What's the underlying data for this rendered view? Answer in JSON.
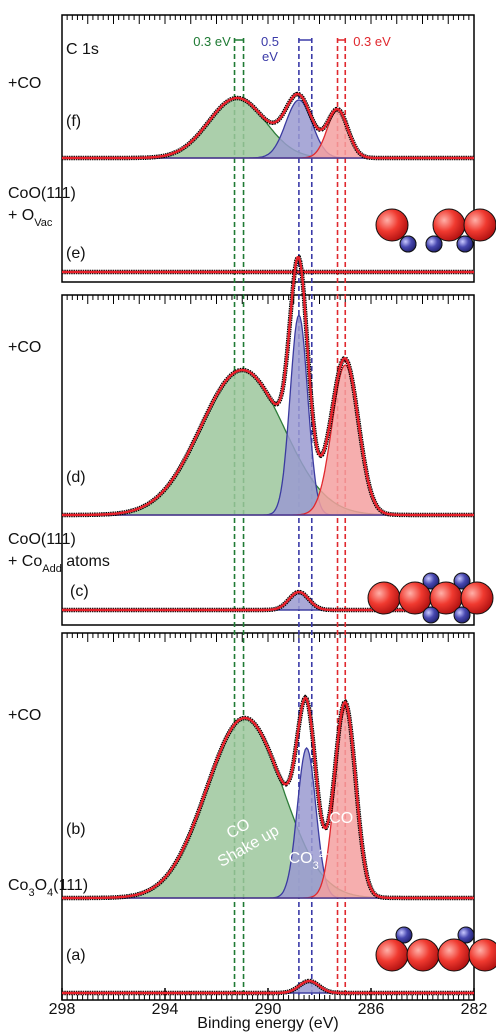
{
  "chart_data": {
    "type": "line",
    "title": "C 1s",
    "xlabel": "Binding energy (eV)",
    "xlim": [
      298,
      282
    ],
    "xticks": [
      298,
      294,
      290,
      286,
      282
    ],
    "reference_lines": [
      {
        "x": 291.3,
        "color": "#1f7a34"
      },
      {
        "x": 290.95,
        "color": "#1f7a34"
      },
      {
        "x": 288.8,
        "color": "#3a3aa8"
      },
      {
        "x": 288.3,
        "color": "#3a3aa8"
      },
      {
        "x": 287.3,
        "color": "#e0282e"
      },
      {
        "x": 287.0,
        "color": "#e0282e"
      }
    ],
    "annotations": [
      {
        "lines": [
          "0.3 eV"
        ],
        "color": "#1f7a34"
      },
      {
        "lines": [
          "0.5",
          "eV"
        ],
        "color": "#3a3aa8"
      },
      {
        "lines": [
          "0.3 eV"
        ],
        "color": "#e0282e"
      }
    ],
    "fit_color": "#e8202a",
    "panels": [
      {
        "note": "+CO",
        "label": "(f)",
        "components": [
          {
            "center": 291.2,
            "height": 60,
            "fwhm": 2.6,
            "color": "#2e7d3a",
            "fill": "#9cc79c"
          },
          {
            "center": 288.8,
            "height": 58,
            "fwhm": 1.2,
            "color": "#3b3ba0",
            "fill": "#9a9ad0"
          },
          {
            "center": 287.3,
            "height": 48,
            "fwhm": 0.95,
            "color": "#e0282e",
            "fill": "#f4a0a0"
          }
        ]
      },
      {
        "label": "(e)",
        "sample": [
          [
            {
              "t": "CoO(111)"
            }
          ],
          [
            {
              "t": "+ O"
            },
            {
              "t": "Vac",
              "sub": true
            }
          ]
        ],
        "components": []
      },
      {
        "note": "+CO",
        "label": "(d)",
        "components": [
          {
            "center": 291.0,
            "height": 145,
            "fwhm": 3.8,
            "color": "#2e7d3a",
            "fill": "#9cc79c"
          },
          {
            "center": 288.8,
            "height": 200,
            "fwhm": 0.8,
            "color": "#3b3ba0",
            "fill": "#9a9ad0"
          },
          {
            "center": 287.0,
            "height": 150,
            "fwhm": 1.2,
            "color": "#e0282e",
            "fill": "#f4a0a0"
          }
        ]
      },
      {
        "label": "(c)",
        "sample": [
          [
            {
              "t": "CoO(111)"
            }
          ],
          [
            {
              "t": "+ Co"
            },
            {
              "t": "Add",
              "sub": true
            },
            {
              "t": " atoms"
            }
          ]
        ],
        "components": [
          {
            "center": 288.8,
            "height": 18,
            "fwhm": 0.9,
            "color": "#3b3ba0",
            "fill": "#9a9ad0"
          }
        ]
      },
      {
        "note": "+CO",
        "label": "(b)",
        "components": [
          {
            "center": 290.9,
            "height": 180,
            "fwhm": 3.5,
            "color": "#2e7d3a",
            "fill": "#9cc79c",
            "label": [
              {
                "t": "CO"
              },
              {
                "t": "Shake up"
              }
            ]
          },
          {
            "center": 288.5,
            "height": 150,
            "fwhm": 0.85,
            "color": "#3b3ba0",
            "fill": "#9a9ad0",
            "label": [
              {
                "t": "CO"
              },
              {
                "t": "3",
                "sub": true
              },
              {
                "t": "2-",
                "sup": true
              }
            ]
          },
          {
            "center": 287.0,
            "height": 190,
            "fwhm": 0.95,
            "color": "#e0282e",
            "fill": "#f4a0a0",
            "label": [
              {
                "t": "CO"
              }
            ]
          }
        ]
      },
      {
        "label": "(a)",
        "sample": [
          [
            {
              "t": "Co"
            },
            {
              "t": "3",
              "sub": true
            },
            {
              "t": "O"
            },
            {
              "t": "4",
              "sub": true
            },
            {
              "t": "(111)"
            }
          ]
        ],
        "components": [
          {
            "center": 288.4,
            "height": 12,
            "fwhm": 0.9,
            "color": "#3b3ba0",
            "fill": "#9a9ad0"
          }
        ]
      }
    ]
  }
}
